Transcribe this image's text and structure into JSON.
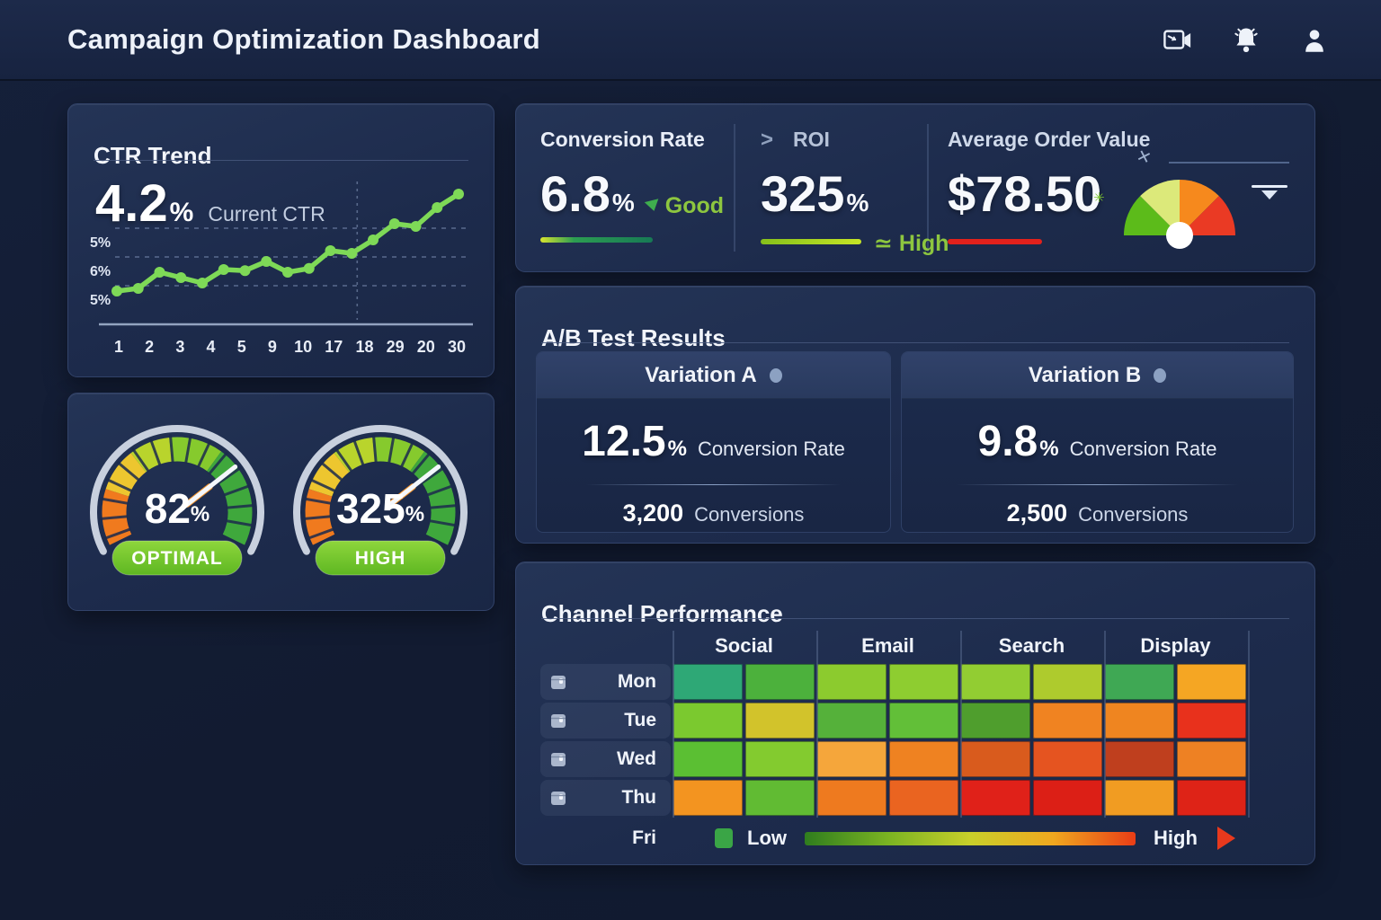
{
  "header": {
    "title": "Campaign Optimization Dashboard"
  },
  "ctr_card": {
    "title": "CTR Trend",
    "value": "4.2",
    "unit": "%",
    "label": "Current CTR"
  },
  "chart_data": {
    "type": "line",
    "title": "CTR Trend",
    "series_name": "CTR",
    "x_tick_labels": [
      "1",
      "2",
      "3",
      "4",
      "5",
      "9",
      "10",
      "17",
      "18",
      "29",
      "20",
      "30"
    ],
    "y_tick_labels": [
      "5%",
      "6%",
      "5%"
    ],
    "values": [
      3.5,
      3.55,
      3.85,
      3.75,
      3.65,
      3.9,
      3.88,
      4.05,
      3.85,
      3.92,
      4.25,
      4.2,
      4.45,
      4.75,
      4.7,
      5.05,
      5.3
    ],
    "ylim": [
      2.9,
      5.6
    ],
    "current_value_pct": 4.2,
    "line_color": "#7ed957",
    "grid": "dashed-horizontal",
    "vline_at_fraction": 0.68,
    "legend_position": "none"
  },
  "kpis": {
    "conversion_rate": {
      "label": "Conversion Rate",
      "value": "6.8",
      "unit": "%",
      "status": "Good",
      "status_color": "#8dc63f"
    },
    "roi": {
      "chevron": ">",
      "label": "ROI",
      "value": "325",
      "unit": "%",
      "status_prefix": "≃",
      "status": "High",
      "status_color": "#8dc63f"
    },
    "aov": {
      "label": "Average Order Value",
      "value": "$78.50",
      "underline_color": "#e2211c",
      "gauge_colors": [
        "#5cbb1a",
        "#dce97a",
        "#f6891d",
        "#ea3a24"
      ]
    }
  },
  "gauges": {
    "arc_colors": [
      "#f07a1e",
      "#edc62f",
      "#b9d42c",
      "#86ca2d",
      "#3fa83c"
    ],
    "pill_gradient": [
      "#5eb722",
      "#8ed63c"
    ],
    "items": [
      {
        "value": "82",
        "unit": "%",
        "status": "OPTIMAL"
      },
      {
        "value": "325",
        "unit": "%",
        "status": "HIGH"
      }
    ]
  },
  "ab_test": {
    "title": "A/B Test Results",
    "variations": [
      {
        "name": "Variation A",
        "rate": "12.5",
        "rate_unit": "%",
        "rate_label": "Conversion Rate",
        "conversions": "3,200",
        "conversions_label": "Conversions"
      },
      {
        "name": "Variation B",
        "rate": "9.8",
        "rate_unit": "%",
        "rate_label": "Conversion Rate",
        "conversions": "2,500",
        "conversions_label": "Conversions"
      }
    ]
  },
  "channel_performance": {
    "title": "Channel Performance",
    "columns": [
      "Social",
      "Email",
      "Search",
      "Display"
    ],
    "rows": [
      {
        "day": "Mon",
        "cells": [
          "#2ea876",
          "#4cb13c",
          "#8ccb2e",
          "#8ecd30",
          "#92cd32",
          "#aecb2d",
          "#3fa854",
          "#f5a623"
        ]
      },
      {
        "day": "Tue",
        "cells": [
          "#7bc92f",
          "#d2c32b",
          "#55b13a",
          "#62bf38",
          "#4f9e2d",
          "#f08321",
          "#ef8520",
          "#e8311c"
        ]
      },
      {
        "day": "Wed",
        "cells": [
          "#5bbf33",
          "#83cb2f",
          "#f5a63b",
          "#ef8221",
          "#d95b1d",
          "#e55420",
          "#bf3f1e",
          "#ee8123"
        ]
      },
      {
        "day": "Thu",
        "cells": [
          "#f39420",
          "#61bb33",
          "#ee7a1f",
          "#ea6420",
          "#e02119",
          "#dc1f16",
          "#f19c22",
          "#de2317"
        ]
      }
    ],
    "legend_row_day": "Fri",
    "legend": {
      "low": "Low",
      "high": "High",
      "swatch_color": "#3aa546",
      "gradient": [
        "#2f7d1e",
        "#7ab322",
        "#c8cf2a",
        "#f0a81f",
        "#ea3d16"
      ],
      "arrow_color": "#e8391d"
    }
  }
}
